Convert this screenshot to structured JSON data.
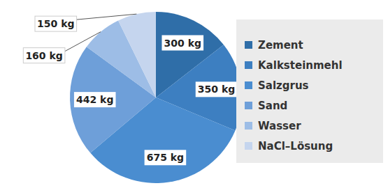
{
  "chart_data": {
    "type": "pie",
    "categories": [
      "Zement",
      "Kalksteinmehl",
      "Salzgrus",
      "Sand",
      "Wasser",
      "NaCl–Lösung"
    ],
    "values": [
      300,
      350,
      675,
      442,
      160,
      150
    ],
    "value_labels": [
      "300 kg",
      "350 kg",
      "675 kg",
      "442 kg",
      "160 kg",
      "150 kg"
    ],
    "colors": [
      "#2f6ea8",
      "#3d7fc1",
      "#4a8dd0",
      "#6e9fd9",
      "#9dbde6",
      "#c5d5ee"
    ],
    "data_labels": true,
    "legend": "right"
  }
}
